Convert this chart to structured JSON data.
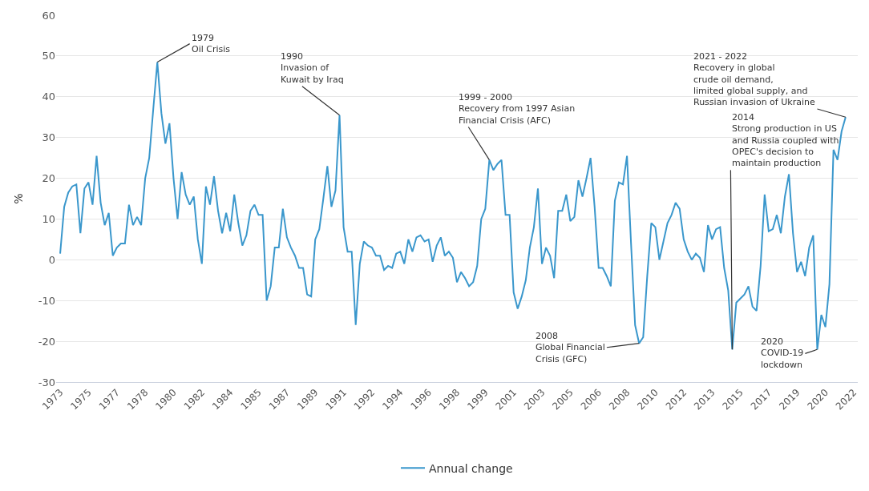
{
  "chart_data": {
    "type": "line",
    "ylabel": "%",
    "x": [
      1973,
      1973.25,
      1973.5,
      1973.75,
      1974,
      1974.25,
      1974.5,
      1974.75,
      1975,
      1975.25,
      1975.5,
      1975.75,
      1976,
      1976.25,
      1976.5,
      1976.75,
      1977,
      1977.25,
      1977.5,
      1977.75,
      1978,
      1978.25,
      1978.5,
      1978.75,
      1979,
      1979.25,
      1979.5,
      1979.75,
      1980,
      1980.25,
      1980.5,
      1980.75,
      1981,
      1981.25,
      1981.5,
      1981.75,
      1982,
      1982.25,
      1982.5,
      1982.75,
      1983,
      1983.25,
      1983.5,
      1983.75,
      1984,
      1984.25,
      1984.5,
      1984.75,
      1985,
      1985.25,
      1985.5,
      1985.75,
      1986,
      1986.25,
      1986.5,
      1986.75,
      1987,
      1987.25,
      1987.5,
      1987.75,
      1988,
      1988.25,
      1988.5,
      1988.75,
      1989,
      1989.25,
      1989.5,
      1989.75,
      1990,
      1990.25,
      1990.5,
      1990.75,
      1991,
      1991.25,
      1991.5,
      1991.75,
      1992,
      1992.25,
      1992.5,
      1992.75,
      1993,
      1993.25,
      1993.5,
      1993.75,
      1994,
      1994.25,
      1994.5,
      1994.75,
      1995,
      1995.25,
      1995.5,
      1995.75,
      1996,
      1996.25,
      1996.5,
      1996.75,
      1997,
      1997.25,
      1997.5,
      1997.75,
      1998,
      1998.25,
      1998.5,
      1998.75,
      1999,
      1999.25,
      1999.5,
      1999.75,
      2000,
      2000.25,
      2000.5,
      2000.75,
      2001,
      2001.25,
      2001.5,
      2001.75,
      2002,
      2002.25,
      2002.5,
      2002.75,
      2003,
      2003.25,
      2003.5,
      2003.75,
      2004,
      2004.25,
      2004.5,
      2004.75,
      2005,
      2005.25,
      2005.5,
      2005.75,
      2006,
      2006.25,
      2006.5,
      2006.75,
      2007,
      2007.25,
      2007.5,
      2007.75,
      2008,
      2008.25,
      2008.5,
      2008.75,
      2009,
      2009.25,
      2009.5,
      2009.75,
      2010,
      2010.25,
      2010.5,
      2010.75,
      2011,
      2011.25,
      2011.5,
      2011.75,
      2012,
      2012.25,
      2012.5,
      2012.75,
      2013,
      2013.25,
      2013.5,
      2013.75,
      2014,
      2014.25,
      2014.5,
      2014.75,
      2015,
      2015.25,
      2015.5,
      2015.75,
      2016,
      2016.25,
      2016.5,
      2016.75,
      2017,
      2017.25,
      2017.5,
      2017.75,
      2018,
      2018.25,
      2018.5,
      2018.75,
      2019,
      2019.25,
      2019.5,
      2019.75,
      2020,
      2020.25,
      2020.5,
      2020.75,
      2021,
      2021.25,
      2021.5
    ],
    "series": [
      {
        "name": "Annual change",
        "color": "#3a97cc",
        "values": [
          1.5,
          13,
          16.5,
          18,
          18.5,
          6.5,
          17.5,
          19,
          13.5,
          25.5,
          14,
          8.5,
          11.5,
          1,
          3,
          4,
          4,
          13.5,
          8.5,
          10.5,
          8.5,
          20,
          25,
          37,
          48.5,
          36,
          28.5,
          33.5,
          20,
          10,
          21.5,
          16,
          13.5,
          15.5,
          5,
          -1,
          18,
          13.5,
          20.5,
          12,
          6.5,
          11.5,
          7,
          16,
          9,
          3.5,
          6,
          12,
          13.5,
          11,
          11,
          -10,
          -6.5,
          3,
          3,
          12.5,
          5.5,
          3,
          1,
          -2,
          -2,
          -8.5,
          -9,
          5,
          7.5,
          15,
          23,
          13,
          17,
          35.5,
          8,
          2,
          2,
          -16,
          -1,
          4.5,
          3.5,
          3,
          1,
          1,
          -2.5,
          -1.5,
          -2,
          1.5,
          2,
          -1,
          5,
          2,
          5.5,
          6,
          4.5,
          5,
          -0.5,
          3.5,
          5.5,
          1,
          2,
          0.5,
          -5.5,
          -3,
          -4.5,
          -6.5,
          -5.5,
          -1.5,
          10,
          12.5,
          24.5,
          22,
          23.5,
          24.5,
          11,
          11,
          -8,
          -12,
          -9,
          -5,
          3,
          8,
          17.5,
          -1,
          3,
          1,
          -4.5,
          12,
          12,
          16,
          9.5,
          10.5,
          19.5,
          15.5,
          20,
          25,
          13,
          -2,
          -2,
          -4,
          -6.5,
          14.5,
          19,
          18.5,
          25.5,
          4,
          -16,
          -20.5,
          -19,
          -4,
          9,
          8,
          0,
          4.5,
          9,
          11,
          14,
          12.5,
          5,
          2,
          0,
          1.5,
          0.5,
          -3,
          8.5,
          5,
          7.5,
          8,
          -2,
          -7.5,
          -22,
          -10.5,
          -9.5,
          -8.5,
          -6.5,
          -11.5,
          -12.5,
          -1.5,
          16,
          7,
          7.5,
          11,
          6.5,
          15.5,
          21,
          6.5,
          -3,
          -0.5,
          -4,
          3,
          6,
          -22,
          -13.5,
          -16.5,
          -6,
          27,
          24.5,
          31.5,
          35
        ]
      }
    ],
    "xlim": [
      1972.75,
      2022.25
    ],
    "xticks": [
      1973,
      {
        "value": 1974.75,
        "label": "1975"
      },
      {
        "value": 1976.5,
        "label": "1977"
      },
      {
        "value": 1978.25,
        "label": "1978"
      },
      1980,
      {
        "value": 1981.75,
        "label": "1982"
      },
      {
        "value": 1983.5,
        "label": "1984"
      },
      {
        "value": 1985.25,
        "label": "1985"
      },
      1987,
      {
        "value": 1988.75,
        "label": "1989"
      },
      {
        "value": 1990.5,
        "label": "1991"
      },
      {
        "value": 1992.25,
        "label": "1992"
      },
      1994,
      {
        "value": 1995.75,
        "label": "1996"
      },
      {
        "value": 1997.5,
        "label": "1998"
      },
      {
        "value": 1999.25,
        "label": "1999"
      },
      2001,
      {
        "value": 2002.75,
        "label": "2003"
      },
      {
        "value": 2004.5,
        "label": "2005"
      },
      {
        "value": 2006.25,
        "label": "2006"
      },
      2008,
      {
        "value": 2009.75,
        "label": "2010"
      },
      {
        "value": 2011.5,
        "label": "2012"
      },
      {
        "value": 2013.25,
        "label": "2013"
      },
      2015,
      {
        "value": 2016.75,
        "label": "2017"
      },
      {
        "value": 2018.5,
        "label": "2019"
      },
      {
        "value": 2020.25,
        "label": "2020"
      },
      2022
    ],
    "ylim": [
      -30,
      60
    ],
    "yticks": [
      -30,
      -20,
      -10,
      0,
      10,
      20,
      30,
      40,
      50,
      60
    ],
    "grid": "y",
    "legend": "bottom",
    "marker": "none",
    "line_style": "solid",
    "annotations": [
      {
        "text": "1979\nOil Crisis",
        "x": 1979,
        "y": 48.5
      },
      {
        "text": "1990\nInvasion of\nKuwait by Iraq",
        "x": 1990.25,
        "y": 35.5
      },
      {
        "text": "1999 - 2000\nRecovery from 1997 Asian\nFinancial Crisis (AFC)",
        "x": 1999.5,
        "y": 24.5
      },
      {
        "text": "2008\nGlobal Financial\nCrisis (GFC)",
        "x": 2008.75,
        "y": -20.5
      },
      {
        "text": "2014\nStrong production in US\nand Russia coupled with\nOPEC's decision to\nmaintain production",
        "x": 2014.5,
        "y": -22
      },
      {
        "text": "2020\nCOVID-19\nlockdown",
        "x": 2019.75,
        "y": -22
      },
      {
        "text": "2021 - 2022\nRecovery in global\ncrude oil demand,\nlimited global supply, and\nRussian invasion of Ukraine",
        "x": 2021.5,
        "y": 35
      }
    ]
  }
}
